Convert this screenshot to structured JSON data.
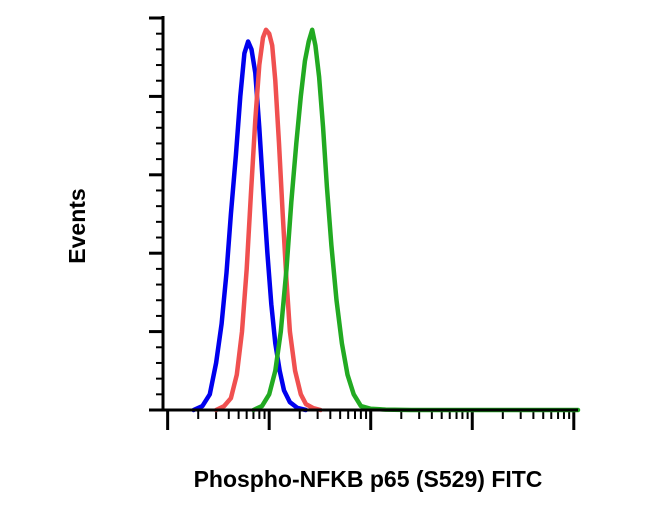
{
  "chart_data": {
    "type": "line",
    "title": "",
    "xlabel": "Phospho-NFKB p65 (S529) FITC",
    "ylabel": "Events",
    "x_scale": "log",
    "xlim": [
      0.9,
      11000
    ],
    "ylim": [
      0,
      1.0
    ],
    "grid": false,
    "legend": "none",
    "x_ticks_major": [
      1,
      10,
      100,
      1000,
      10000
    ],
    "y_ticks_major": [
      0,
      0.2,
      0.4,
      0.6,
      0.8,
      1.0
    ],
    "show_tick_labels": false,
    "series": [
      {
        "color": "#0000ee",
        "points": [
          [
            1.8,
            0
          ],
          [
            2.2,
            0.01
          ],
          [
            2.6,
            0.04
          ],
          [
            3.0,
            0.12
          ],
          [
            3.4,
            0.22
          ],
          [
            3.8,
            0.35
          ],
          [
            4.2,
            0.5
          ],
          [
            4.7,
            0.65
          ],
          [
            5.2,
            0.8
          ],
          [
            5.7,
            0.91
          ],
          [
            6.2,
            0.94
          ],
          [
            6.7,
            0.92
          ],
          [
            7.3,
            0.86
          ],
          [
            8.0,
            0.72
          ],
          [
            8.8,
            0.55
          ],
          [
            9.6,
            0.4
          ],
          [
            10.5,
            0.27
          ],
          [
            11.5,
            0.17
          ],
          [
            12.7,
            0.1
          ],
          [
            14,
            0.05
          ],
          [
            16,
            0.02
          ],
          [
            19,
            0.005
          ],
          [
            23,
            0
          ]
        ]
      },
      {
        "color": "#f05050",
        "points": [
          [
            3,
            0
          ],
          [
            3.6,
            0.01
          ],
          [
            4.2,
            0.03
          ],
          [
            4.8,
            0.09
          ],
          [
            5.4,
            0.2
          ],
          [
            6.0,
            0.36
          ],
          [
            6.6,
            0.55
          ],
          [
            7.3,
            0.74
          ],
          [
            8.0,
            0.88
          ],
          [
            8.7,
            0.95
          ],
          [
            9.3,
            0.97
          ],
          [
            10.0,
            0.96
          ],
          [
            10.7,
            0.93
          ],
          [
            11.5,
            0.84
          ],
          [
            12.5,
            0.68
          ],
          [
            13.6,
            0.5
          ],
          [
            14.8,
            0.33
          ],
          [
            16,
            0.2
          ],
          [
            18,
            0.1
          ],
          [
            20.5,
            0.04
          ],
          [
            23,
            0.015
          ],
          [
            27,
            0.005
          ],
          [
            32,
            0
          ]
        ]
      },
      {
        "color": "#22aa22",
        "points": [
          [
            7,
            0
          ],
          [
            8.5,
            0.01
          ],
          [
            10,
            0.04
          ],
          [
            11.5,
            0.1
          ],
          [
            13,
            0.2
          ],
          [
            14.8,
            0.36
          ],
          [
            16.5,
            0.53
          ],
          [
            18.5,
            0.68
          ],
          [
            20.5,
            0.8
          ],
          [
            22.5,
            0.89
          ],
          [
            24.5,
            0.94
          ],
          [
            26.5,
            0.97
          ],
          [
            28.5,
            0.93
          ],
          [
            31,
            0.85
          ],
          [
            34,
            0.72
          ],
          [
            37,
            0.57
          ],
          [
            41,
            0.42
          ],
          [
            46,
            0.28
          ],
          [
            52,
            0.17
          ],
          [
            59,
            0.09
          ],
          [
            68,
            0.04
          ],
          [
            80,
            0.01
          ],
          [
            100,
            0.003
          ],
          [
            140,
            0.001
          ],
          [
            250,
            0
          ],
          [
            11000,
            0
          ]
        ]
      }
    ]
  }
}
